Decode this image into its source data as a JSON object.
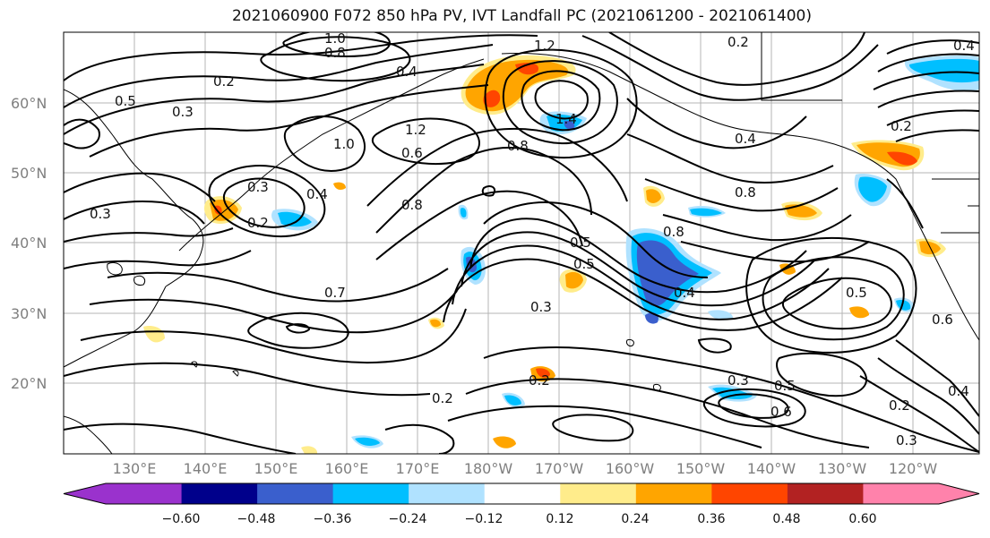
{
  "title": "2021060900 F072 850 hPa PV, IVT Landfall PC (2021061200 - 2021061400)",
  "lat_labels": [
    "60°N",
    "50°N",
    "40°N",
    "30°N",
    "20°N"
  ],
  "lon_labels": [
    "130°E",
    "140°E",
    "150°E",
    "160°E",
    "170°E",
    "180°W",
    "170°W",
    "160°W",
    "150°W",
    "140°W",
    "130°W",
    "120°W"
  ],
  "colorbar": {
    "colors": [
      "#9a32cd",
      "#00008b",
      "#3a5fcd",
      "#00bfff",
      "#b0e2ff",
      "#ffffff",
      "#ffec8b",
      "#ffa500",
      "#ff4500",
      "#b22222",
      "#ff82ab"
    ],
    "tick_labels": [
      "−0.60",
      "−0.48",
      "−0.36",
      "−0.24",
      "−0.12",
      "0.12",
      "0.24",
      "0.36",
      "0.48",
      "0.60"
    ]
  },
  "contour_labels": [
    "1.0",
    "0.8",
    "1.2",
    "0.2",
    "0.4",
    "0.5",
    "0.2",
    "0.4",
    "0.3",
    "1.0",
    "1.2",
    "1.4",
    "0.6",
    "0.8",
    "0.4",
    "0.2",
    "0.8",
    "0.3",
    "0.4",
    "0.2",
    "0.8",
    "0.3",
    "0.5",
    "0.5",
    "0.8",
    "0.4",
    "0.7",
    "0.3",
    "0.5",
    "0.6",
    "0.2",
    "0.2",
    "0.3",
    "0.5",
    "0.6",
    "0.2",
    "0.3",
    "0.4"
  ]
}
